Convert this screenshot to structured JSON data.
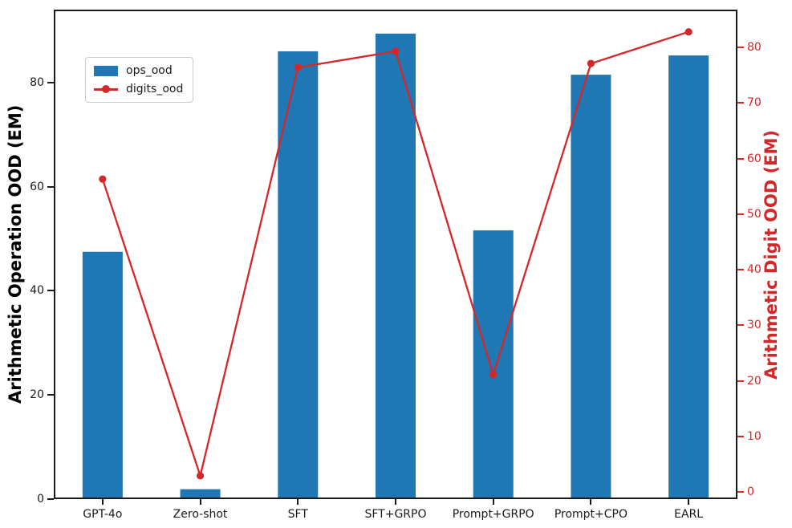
{
  "chart_data": {
    "type": "bar+line",
    "title": "",
    "categories": [
      "GPT-4o",
      "Zero-shot",
      "SFT",
      "SFT+GRPO",
      "Prompt+GRPO",
      "Prompt+CPO",
      "EARL"
    ],
    "series": [
      {
        "name": "ops_ood",
        "type": "bar",
        "axis": "left",
        "color": "#1f77b4",
        "values": [
          47.5,
          1.9,
          86.0,
          89.4,
          51.6,
          81.5,
          85.2
        ]
      },
      {
        "name": "digits_ood",
        "type": "line",
        "axis": "right",
        "color": "#d62728",
        "marker": "circle",
        "values": [
          56.3,
          2.9,
          76.4,
          79.3,
          21.1,
          77.1,
          82.8
        ]
      }
    ],
    "left_axis": {
      "label": "Arithmetic Operation OOD (EM)",
      "color": "#000000",
      "ticks": [
        0,
        20,
        40,
        60,
        80
      ],
      "min": 0,
      "max": 94
    },
    "right_axis": {
      "label": "Arithmetic Digit OOD (EM)",
      "color": "#d62728",
      "ticks": [
        0,
        10,
        20,
        30,
        40,
        50,
        60,
        70,
        80
      ],
      "min": -1.3,
      "max": 86.8
    },
    "legend": {
      "position": "upper left",
      "entries": [
        "ops_ood",
        "digits_ood"
      ]
    },
    "grid": false,
    "background": "#ffffff",
    "spine_color": "#1a1a1a"
  }
}
